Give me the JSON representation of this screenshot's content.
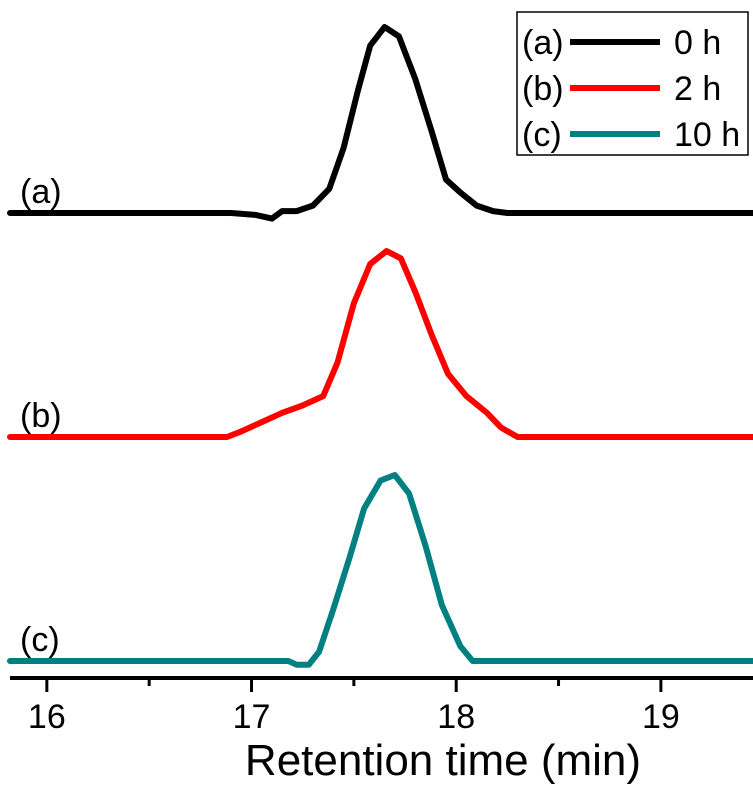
{
  "chart_data": {
    "type": "line",
    "title": "",
    "xlabel": "Retention time (min)",
    "ylabel": "",
    "xlim": [
      15.82,
      19.45
    ],
    "xticks_major": [
      16,
      17,
      18,
      19
    ],
    "xticks_minor": [
      16.5,
      17.5,
      18.5
    ],
    "grid": false,
    "legend_position": "top-right",
    "series": [
      {
        "name": "0 h",
        "label": "(a)",
        "legend_prefix": "(a)",
        "color": "#000000",
        "points": [
          [
            15.82,
            0
          ],
          [
            16.9,
            0
          ],
          [
            17.02,
            -0.01
          ],
          [
            17.1,
            -0.03
          ],
          [
            17.15,
            0.01
          ],
          [
            17.22,
            0.01
          ],
          [
            17.3,
            0.04
          ],
          [
            17.38,
            0.13
          ],
          [
            17.45,
            0.35
          ],
          [
            17.52,
            0.66
          ],
          [
            17.58,
            0.9
          ],
          [
            17.65,
            1.0
          ],
          [
            17.72,
            0.95
          ],
          [
            17.8,
            0.72
          ],
          [
            17.88,
            0.44
          ],
          [
            17.95,
            0.18
          ],
          [
            18.02,
            0.11
          ],
          [
            18.1,
            0.04
          ],
          [
            18.18,
            0.01
          ],
          [
            18.25,
            0
          ],
          [
            19.45,
            0
          ]
        ]
      },
      {
        "name": "2 h",
        "label": "(b)",
        "legend_prefix": "(b)",
        "color": "#ff0000",
        "points": [
          [
            15.82,
            0
          ],
          [
            16.88,
            0
          ],
          [
            16.95,
            0.03
          ],
          [
            17.05,
            0.08
          ],
          [
            17.15,
            0.13
          ],
          [
            17.25,
            0.17
          ],
          [
            17.35,
            0.22
          ],
          [
            17.42,
            0.4
          ],
          [
            17.5,
            0.72
          ],
          [
            17.58,
            0.93
          ],
          [
            17.66,
            1.0
          ],
          [
            17.73,
            0.96
          ],
          [
            17.8,
            0.78
          ],
          [
            17.88,
            0.55
          ],
          [
            17.96,
            0.34
          ],
          [
            18.05,
            0.22
          ],
          [
            18.15,
            0.13
          ],
          [
            18.22,
            0.05
          ],
          [
            18.3,
            0.0
          ],
          [
            19.45,
            0
          ]
        ]
      },
      {
        "name": "10 h",
        "label": "(c)",
        "legend_prefix": "(c)",
        "color": "#008080",
        "points": [
          [
            15.82,
            0
          ],
          [
            17.18,
            0
          ],
          [
            17.22,
            -0.02
          ],
          [
            17.28,
            -0.02
          ],
          [
            17.33,
            0.05
          ],
          [
            17.4,
            0.28
          ],
          [
            17.48,
            0.56
          ],
          [
            17.55,
            0.82
          ],
          [
            17.63,
            0.97
          ],
          [
            17.7,
            1.0
          ],
          [
            17.77,
            0.9
          ],
          [
            17.85,
            0.62
          ],
          [
            17.93,
            0.3
          ],
          [
            18.02,
            0.08
          ],
          [
            18.08,
            0.0
          ],
          [
            19.45,
            0
          ]
        ]
      }
    ]
  }
}
